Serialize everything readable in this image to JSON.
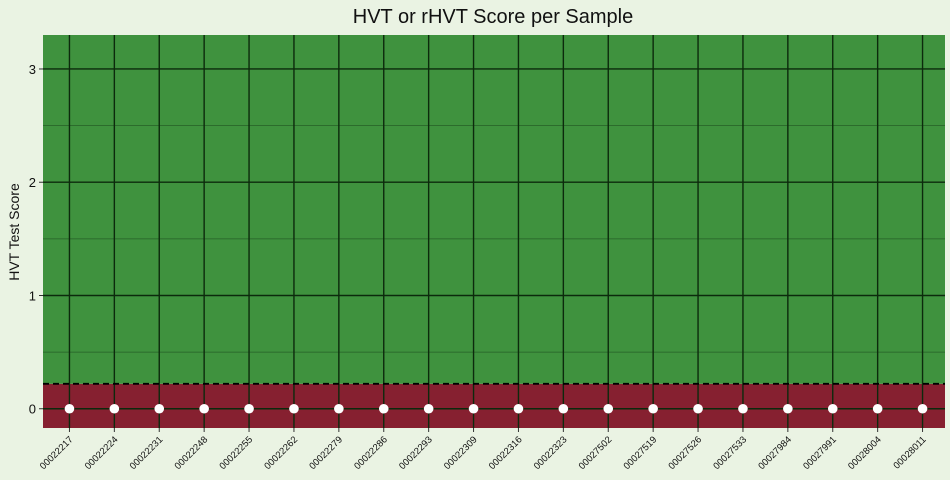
{
  "chart_data": {
    "type": "scatter",
    "title": "HVT or rHVT Score per Sample",
    "xlabel": "",
    "ylabel": "HVT Test Score",
    "categories": [
      "00022217",
      "00022224",
      "00022231",
      "00022248",
      "00022255",
      "00022262",
      "00022279",
      "00022286",
      "00022293",
      "00022309",
      "00022316",
      "00022323",
      "00027502",
      "00027519",
      "00027526",
      "00027533",
      "00027984",
      "00027991",
      "00028004",
      "00028011"
    ],
    "series": [
      {
        "values": [
          0,
          0,
          0,
          0,
          0,
          0,
          0,
          0,
          0,
          0,
          0,
          0,
          0,
          0,
          0,
          0,
          0,
          0,
          0,
          0
        ]
      }
    ],
    "ylim": [
      -0.17,
      3.3
    ],
    "yticks": [
      0,
      1,
      2,
      3
    ],
    "threshold": 0.22,
    "bands": [
      {
        "from": -0.17,
        "to": 0.22,
        "color": "#862030"
      },
      {
        "from": 0.22,
        "to": 3.3,
        "color": "#3f923e"
      }
    ],
    "point_color": "#ffffff",
    "grid": true
  }
}
